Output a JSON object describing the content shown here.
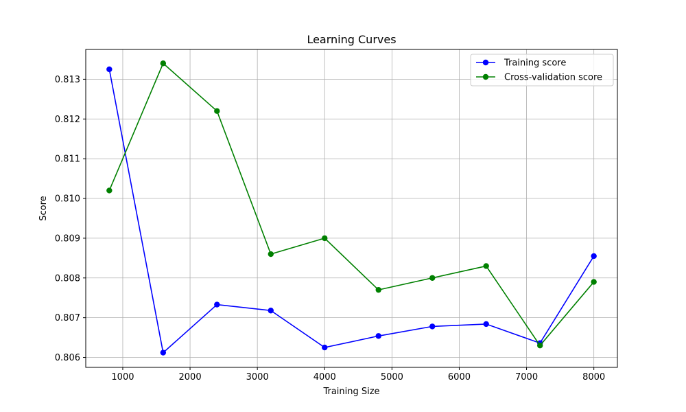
{
  "chart_data": {
    "type": "line",
    "title": "Learning Curves",
    "xlabel": "Training Size",
    "ylabel": "Score",
    "xlim": [
      450,
      8350
    ],
    "ylim": [
      0.80575,
      0.81375
    ],
    "xticks": [
      1000,
      2000,
      3000,
      4000,
      5000,
      6000,
      7000,
      8000
    ],
    "xtick_labels": [
      "1000",
      "2000",
      "3000",
      "4000",
      "5000",
      "6000",
      "7000",
      "8000"
    ],
    "yticks": [
      0.806,
      0.807,
      0.808,
      0.809,
      0.81,
      0.811,
      0.812,
      0.813
    ],
    "ytick_labels": [
      "0.806",
      "0.807",
      "0.808",
      "0.809",
      "0.810",
      "0.811",
      "0.812",
      "0.813"
    ],
    "grid": true,
    "legend_position": "top-right",
    "x": [
      800,
      1600,
      2400,
      3200,
      4000,
      4800,
      5600,
      6400,
      7200,
      8000
    ],
    "series": [
      {
        "name": "Training score",
        "color": "#0000ff",
        "marker": "circle",
        "values": [
          0.81325,
          0.80612,
          0.80733,
          0.80718,
          0.80625,
          0.80654,
          0.80678,
          0.80684,
          0.80636,
          0.80855
        ]
      },
      {
        "name": "Cross-validation score",
        "color": "#008000",
        "marker": "circle",
        "values": [
          0.8102,
          0.8134,
          0.8122,
          0.8086,
          0.809,
          0.8077,
          0.808,
          0.8083,
          0.8063,
          0.8079
        ]
      }
    ]
  }
}
